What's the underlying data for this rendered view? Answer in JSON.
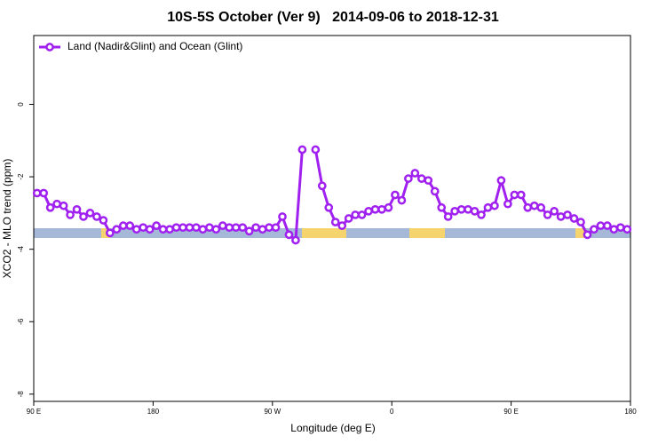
{
  "chart_data": {
    "type": "line",
    "title": "10S-5S October (Ver 9)   2014-09-06 to 2018-12-31",
    "x_label": "Longitude (deg E)",
    "y_label": "XCO2 - MLO trend (ppm)",
    "x": [
      92.5,
      97.5,
      102.5,
      107.5,
      112.5,
      117.5,
      122.5,
      127.5,
      132.5,
      137.5,
      142.5,
      147.5,
      152.5,
      157.5,
      162.5,
      167.5,
      172.5,
      177.5,
      182.5,
      187.5,
      192.5,
      197.5,
      202.5,
      207.5,
      212.5,
      217.5,
      222.5,
      227.5,
      232.5,
      237.5,
      242.5,
      247.5,
      252.5,
      257.5,
      262.5,
      267.5,
      272.5,
      277.5,
      282.5,
      287.5,
      292.5,
      297.5,
      302.5,
      307.5,
      312.5,
      317.5,
      322.5,
      327.5,
      332.5,
      337.5,
      342.5,
      347.5,
      352.5,
      357.5,
      362.5,
      367.5,
      372.5,
      377.5,
      382.5,
      387.5,
      392.5,
      397.5,
      402.5,
      407.5,
      412.5,
      417.5,
      422.5,
      427.5,
      432.5,
      437.5,
      442.5,
      447.5,
      452.5,
      457.5,
      462.5,
      467.5,
      472.5,
      477.5,
      482.5,
      487.5,
      492.5,
      497.5,
      502.5,
      507.5,
      512.5,
      517.5,
      522.5,
      527.5,
      532.5,
      537.5
    ],
    "series": [
      {
        "name": "Land (Nadir&Glint) and Ocean (Glint)",
        "color": "#a020f0",
        "values": [
          -2.45,
          -2.45,
          -2.85,
          -2.75,
          -2.8,
          -3.05,
          -2.9,
          -3.1,
          -3.0,
          -3.1,
          -3.2,
          -3.55,
          -3.45,
          -3.35,
          -3.35,
          -3.45,
          -3.4,
          -3.45,
          -3.35,
          -3.45,
          -3.45,
          -3.4,
          -3.4,
          -3.4,
          -3.4,
          -3.45,
          -3.4,
          -3.45,
          -3.35,
          -3.4,
          -3.4,
          -3.4,
          -3.5,
          -3.4,
          -3.45,
          -3.4,
          -3.4,
          -3.1,
          -3.6,
          -3.75,
          -1.25,
          null,
          -1.25,
          -2.25,
          -2.85,
          -3.25,
          -3.35,
          -3.15,
          -3.05,
          -3.05,
          -2.95,
          -2.9,
          -2.9,
          -2.85,
          -2.5,
          -2.65,
          -2.05,
          -1.9,
          -2.05,
          -2.1,
          -2.4,
          -2.85,
          -3.1,
          -2.95,
          -2.9,
          -2.9,
          -2.95,
          -3.05,
          -2.85,
          -2.8,
          -2.1,
          -2.75,
          -2.5,
          -2.5,
          -2.85,
          -2.8,
          -2.85,
          -3.05,
          -2.95,
          -3.1,
          -3.05,
          -3.15,
          -3.25,
          -3.6,
          -3.45,
          -3.35,
          -3.35,
          -3.45,
          -3.4,
          -3.45
        ]
      }
    ],
    "xlim": [
      90,
      540
    ],
    "xticks": [
      {
        "value": 90,
        "label": "90 E"
      },
      180,
      {
        "value": 270,
        "label": "90 W"
      },
      {
        "value": 360,
        "label": "0"
      },
      {
        "value": 450,
        "label": "90 E"
      },
      {
        "value": 540,
        "label": "180"
      }
    ],
    "ylim": [
      -8.2,
      1.9
    ],
    "yticks": [
      0,
      -2,
      -4,
      -6,
      -8
    ],
    "legend": "top-left"
  }
}
